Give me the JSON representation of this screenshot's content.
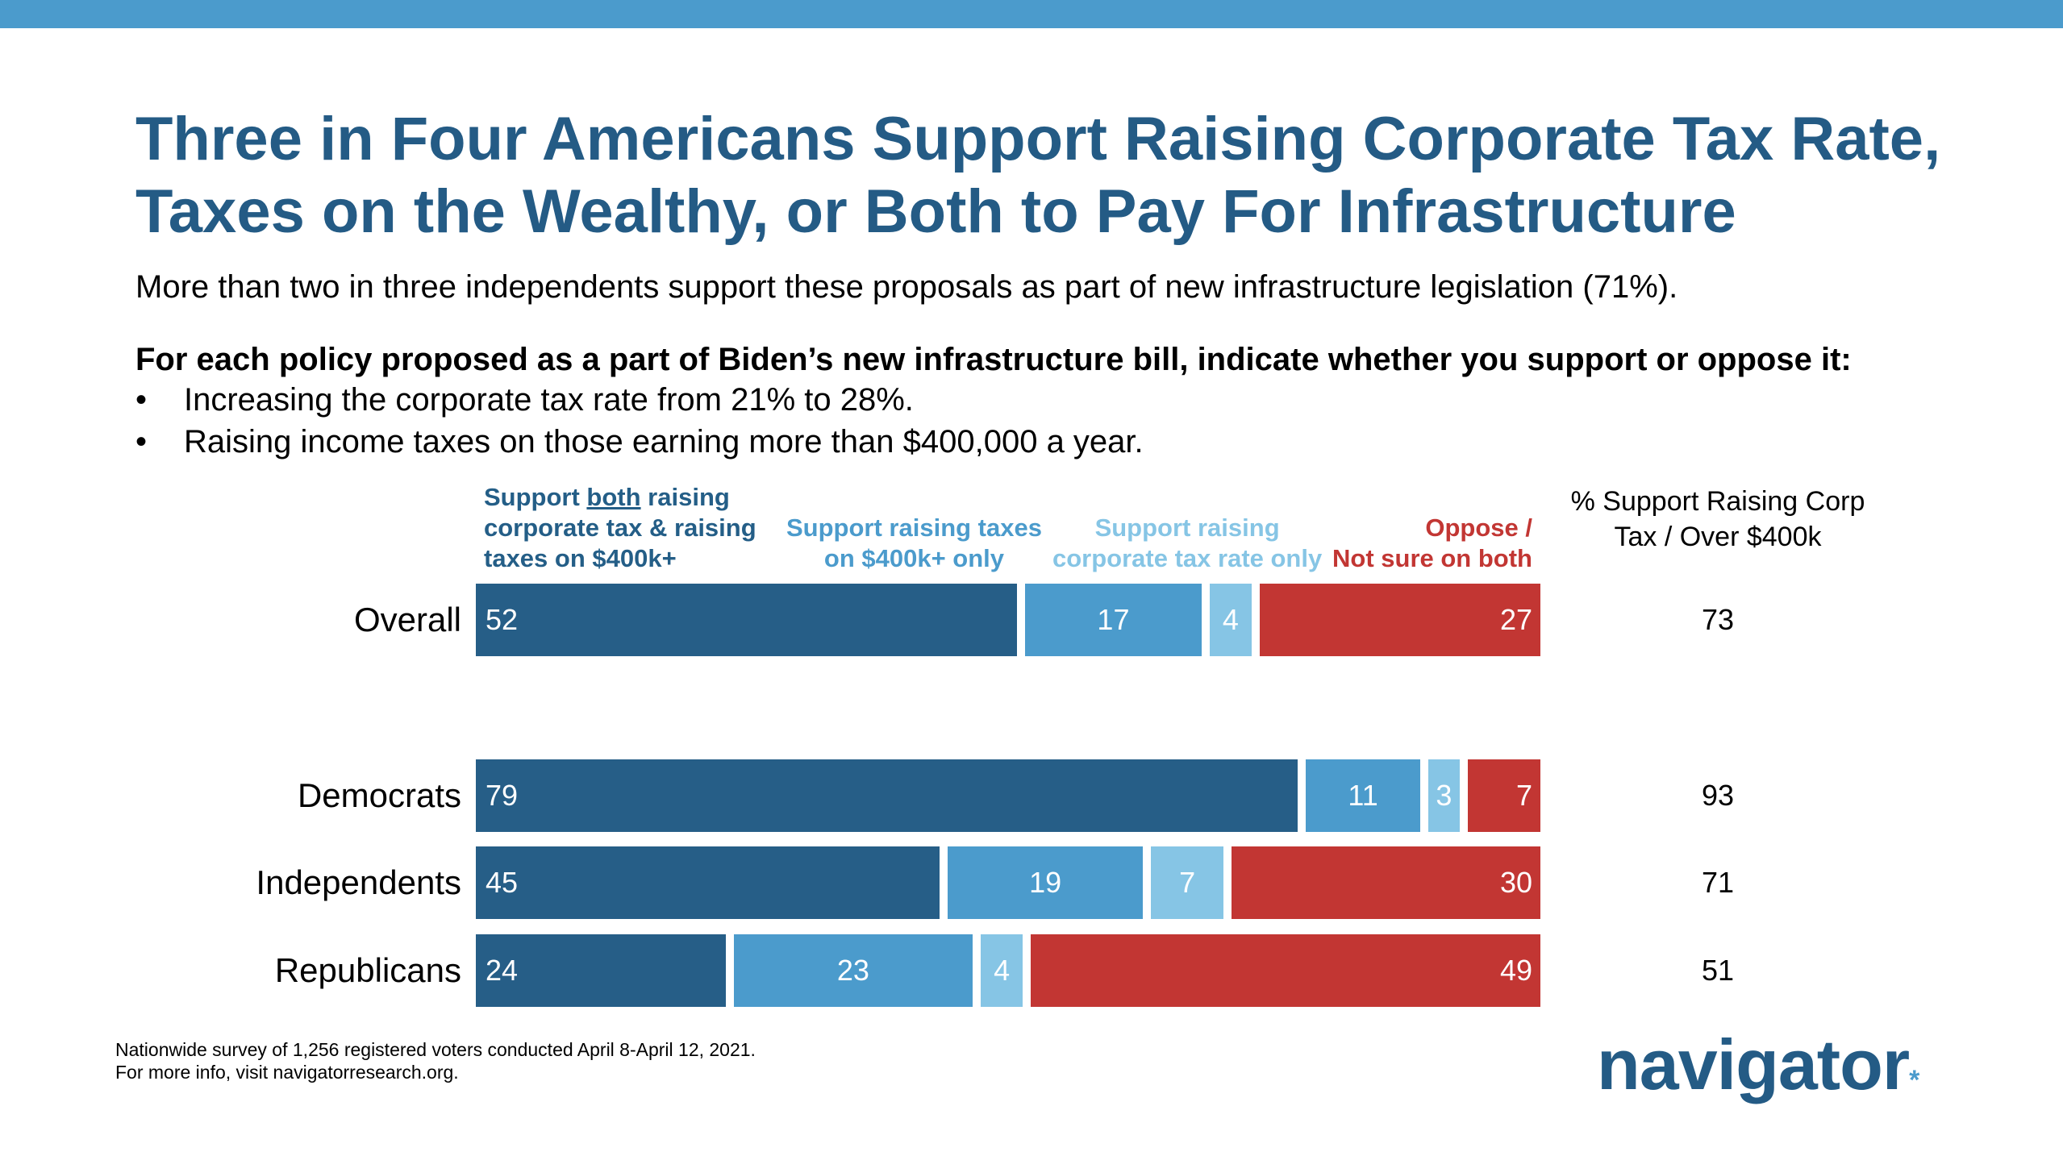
{
  "title_lines": [
    "Three in Four Americans Support Raising Corporate Tax Rate,",
    "Taxes on the Wealthy, or Both to Pay For Infrastructure"
  ],
  "subtitle": "More than two in three independents support these proposals as part of new infrastructure legislation (71%).",
  "question": "For each policy proposed as a part of Biden’s new infrastructure bill, indicate whether you support or oppose it:",
  "bullets": [
    "Increasing the corporate tax rate from 21% to 28%.",
    "Raising income taxes on those earning more than $400,000 a year."
  ],
  "legend": {
    "both_line1_pre": "Support ",
    "both_line1_underlined": "both",
    "both_line1_post": " raising",
    "both_line2": "corporate tax & raising",
    "both_line3": "taxes on $400k+",
    "taxes_line1": "Support raising taxes",
    "taxes_line2": "on $400k+ only",
    "corp_line1": "Support raising",
    "corp_line2": "corporate tax rate only",
    "oppose_line1": "Oppose /",
    "oppose_line2": "Not sure on both"
  },
  "support_header_line1": "% Support Raising Corp",
  "support_header_line2": "Tax / Over $400k",
  "colors": {
    "both": "#265e87",
    "taxes": "#4b9bcc",
    "corp": "#86c5e5",
    "oppose": "#c23633",
    "title": "#245b85"
  },
  "chart_data": {
    "type": "bar",
    "orientation": "horizontal",
    "stacked": true,
    "categories": [
      "Overall",
      "Democrats",
      "Independents",
      "Republicans"
    ],
    "series": [
      {
        "name": "Support both raising corporate tax & raising taxes on $400k+",
        "values": [
          52,
          79,
          45,
          24
        ]
      },
      {
        "name": "Support raising taxes on $400k+ only",
        "values": [
          17,
          11,
          19,
          23
        ]
      },
      {
        "name": "Support raising corporate tax rate only",
        "values": [
          4,
          3,
          7,
          4
        ]
      },
      {
        "name": "Oppose / Not sure on both",
        "values": [
          27,
          7,
          30,
          49
        ]
      }
    ],
    "support_totals": [
      73,
      93,
      71,
      51
    ],
    "grid": false,
    "legend": "top"
  },
  "footnote_lines": [
    "Nationwide survey of 1,256 registered voters conducted April 8-April 12, 2021.",
    "For more info, visit navigatorresearch.org."
  ],
  "logo_text": "navigator",
  "logo_mark": "*"
}
